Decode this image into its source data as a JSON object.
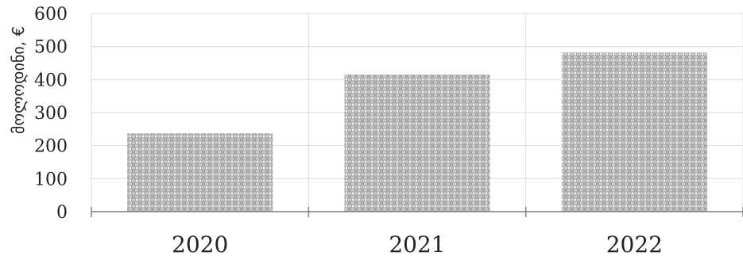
{
  "chart_data": {
    "type": "bar",
    "title": "",
    "xlabel": "",
    "ylabel": "მოლოდინი, €",
    "categories": [
      "2020",
      "2021",
      "2022"
    ],
    "values": [
      237,
      415,
      482
    ],
    "ylim": [
      0,
      600
    ],
    "yticks": [
      0,
      100,
      200,
      300,
      400,
      500,
      600
    ],
    "grid": true,
    "bar_color": "#c8c8c8",
    "pattern_color": "#9a9a9a",
    "gridline_color": "#d9d9d9",
    "axis_color": "#7f7f7f"
  }
}
